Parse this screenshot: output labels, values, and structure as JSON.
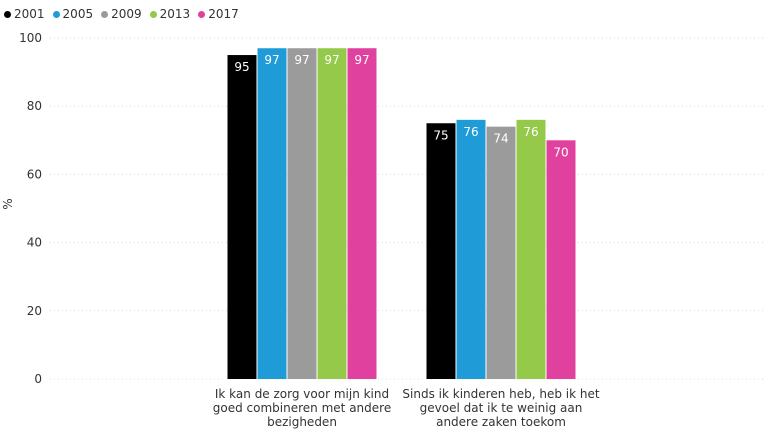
{
  "chart_data": {
    "type": "bar",
    "title": "",
    "xlabel": "",
    "ylabel": "%",
    "ylim": [
      0,
      100
    ],
    "yticks": [
      0,
      20,
      40,
      60,
      80,
      100
    ],
    "grid": true,
    "legend_position": "top-left",
    "categories": [
      [
        "Ik kan de zorg voor mijn kind",
        "goed combineren met andere",
        "bezigheden"
      ],
      [
        "Sinds ik kinderen heb, heb ik het",
        "gevoel dat ik te weinig aan",
        "andere zaken toekom"
      ]
    ],
    "series": [
      {
        "name": "2001",
        "color": "#000000",
        "values": [
          95,
          75
        ]
      },
      {
        "name": "2005",
        "color": "#1f9bd7",
        "values": [
          97,
          76
        ]
      },
      {
        "name": "2009",
        "color": "#9b9b9b",
        "values": [
          97,
          74
        ]
      },
      {
        "name": "2013",
        "color": "#94c94a",
        "values": [
          97,
          76
        ]
      },
      {
        "name": "2017",
        "color": "#e0419f",
        "values": [
          97,
          70
        ]
      }
    ]
  }
}
